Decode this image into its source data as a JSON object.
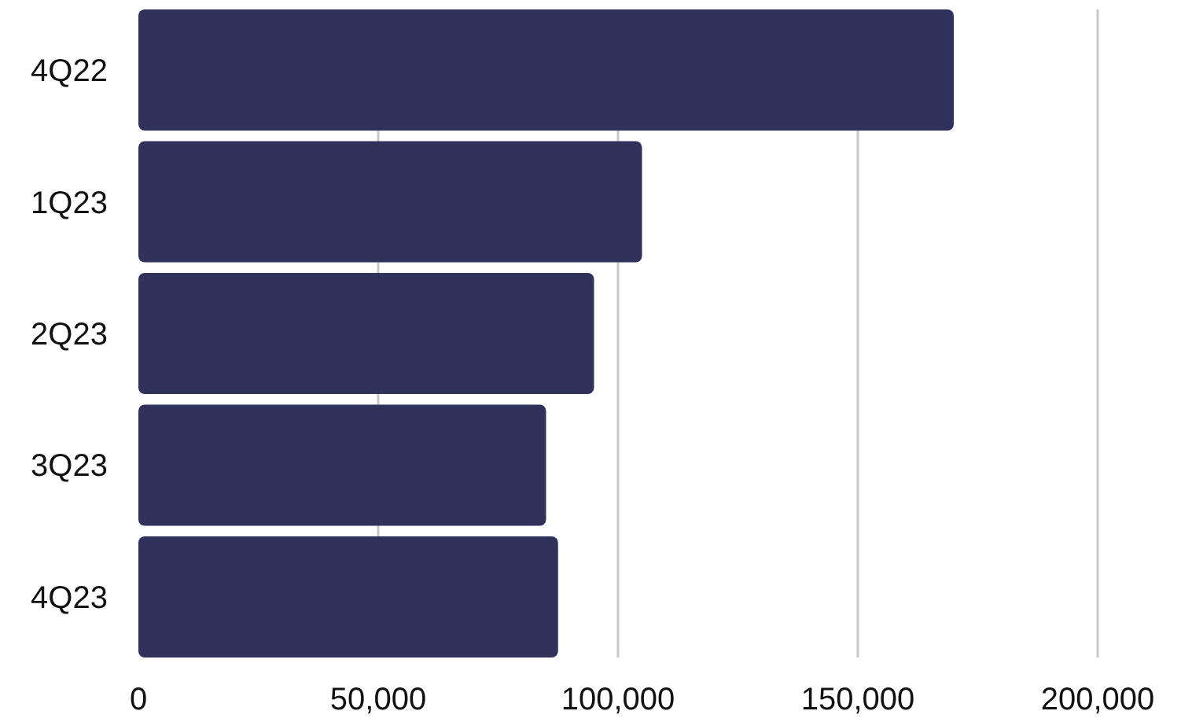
{
  "chart_data": {
    "type": "bar",
    "orientation": "horizontal",
    "categories": [
      "4Q22",
      "1Q23",
      "2Q23",
      "3Q23",
      "4Q23"
    ],
    "values": [
      170000,
      105000,
      95000,
      85000,
      87500
    ],
    "color": "#30325c",
    "xlim": [
      0,
      200000
    ],
    "xticks": [
      {
        "value": 0,
        "label": "0"
      },
      {
        "value": 50000,
        "label": "50,000"
      },
      {
        "value": 100000,
        "label": "100,000"
      },
      {
        "value": 150000,
        "label": "150,000"
      },
      {
        "value": 200000,
        "label": "200,000"
      }
    ],
    "grid": "x"
  }
}
